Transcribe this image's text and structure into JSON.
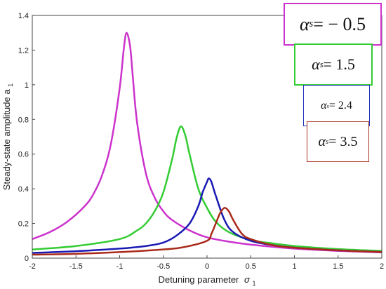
{
  "chart_data": {
    "type": "line",
    "xlabel": "Detuning parameter",
    "xlabel_symbol": "σ",
    "xlabel_subscript": "1",
    "ylabel": "Steady-state amplitude a",
    "ylabel_subscript": "1",
    "xlim": [
      -2,
      2
    ],
    "ylim": [
      0,
      1.4
    ],
    "x_ticks": [
      "-2",
      "-1.5",
      "-1",
      "-0.5",
      "0",
      "0.5",
      "1",
      "1.5",
      "2"
    ],
    "y_ticks": [
      "0",
      "0.2",
      "0.4",
      "0.6",
      "0.8",
      "1",
      "1.2",
      "1.4"
    ],
    "legend_position": "top-right",
    "series": [
      {
        "name": "α_s = −0.5",
        "label_symbol": "α",
        "label_sub": "s",
        "label_rest": " = − 0.5",
        "color": "#cc33cc",
        "points": [
          [
            -2.0,
            0.11
          ],
          [
            -1.8,
            0.15
          ],
          [
            -1.6,
            0.21
          ],
          [
            -1.4,
            0.3
          ],
          [
            -1.3,
            0.37
          ],
          [
            -1.2,
            0.48
          ],
          [
            -1.1,
            0.66
          ],
          [
            -1.0,
            0.98
          ],
          [
            -0.95,
            1.22
          ],
          [
            -0.92,
            1.3
          ],
          [
            -0.88,
            1.22
          ],
          [
            -0.85,
            1.05
          ],
          [
            -0.8,
            0.78
          ],
          [
            -0.7,
            0.49
          ],
          [
            -0.6,
            0.35
          ],
          [
            -0.5,
            0.27
          ],
          [
            -0.4,
            0.22
          ],
          [
            -0.2,
            0.16
          ],
          [
            0.0,
            0.12
          ],
          [
            0.25,
            0.095
          ],
          [
            0.5,
            0.078
          ],
          [
            1.0,
            0.055
          ],
          [
            1.5,
            0.042
          ],
          [
            2.0,
            0.033
          ]
        ]
      },
      {
        "name": "α_s = 1.5",
        "label_symbol": "α",
        "label_sub": "s",
        "label_rest": " = 1.5",
        "color": "#33cc33",
        "points": [
          [
            -2.0,
            0.05
          ],
          [
            -1.5,
            0.07
          ],
          [
            -1.0,
            0.11
          ],
          [
            -0.8,
            0.16
          ],
          [
            -0.7,
            0.2
          ],
          [
            -0.6,
            0.27
          ],
          [
            -0.5,
            0.38
          ],
          [
            -0.4,
            0.57
          ],
          [
            -0.35,
            0.69
          ],
          [
            -0.3,
            0.76
          ],
          [
            -0.25,
            0.71
          ],
          [
            -0.2,
            0.6
          ],
          [
            -0.1,
            0.4
          ],
          [
            0.0,
            0.29
          ],
          [
            0.1,
            0.21
          ],
          [
            0.25,
            0.15
          ],
          [
            0.5,
            0.105
          ],
          [
            0.75,
            0.085
          ],
          [
            1.0,
            0.07
          ],
          [
            1.5,
            0.052
          ],
          [
            2.0,
            0.042
          ]
        ]
      },
      {
        "name": "α_s = 2.4",
        "label_symbol": "α",
        "label_sub": "s",
        "label_rest": " = 2.4",
        "color": "#1a1ab3",
        "points": [
          [
            -2.0,
            0.03
          ],
          [
            -1.5,
            0.04
          ],
          [
            -1.0,
            0.055
          ],
          [
            -0.7,
            0.07
          ],
          [
            -0.5,
            0.09
          ],
          [
            -0.35,
            0.13
          ],
          [
            -0.2,
            0.2
          ],
          [
            -0.1,
            0.3
          ],
          [
            -0.05,
            0.38
          ],
          [
            0.0,
            0.44
          ],
          [
            0.02,
            0.46
          ],
          [
            0.05,
            0.44
          ],
          [
            0.1,
            0.36
          ],
          [
            0.2,
            0.22
          ],
          [
            0.3,
            0.15
          ],
          [
            0.5,
            0.1
          ],
          [
            0.75,
            0.075
          ],
          [
            1.0,
            0.06
          ],
          [
            1.5,
            0.045
          ],
          [
            2.0,
            0.035
          ]
        ]
      },
      {
        "name": "α_s = 3.5",
        "label_symbol": "α",
        "label_sub": "s",
        "label_rest": " = 3.5",
        "color": "#aa2a1a",
        "points": [
          [
            -2.0,
            0.02
          ],
          [
            -1.5,
            0.025
          ],
          [
            -1.0,
            0.035
          ],
          [
            -0.5,
            0.05
          ],
          [
            -0.25,
            0.065
          ],
          [
            0.0,
            0.1
          ],
          [
            0.05,
            0.14
          ],
          [
            0.1,
            0.2
          ],
          [
            0.15,
            0.26
          ],
          [
            0.2,
            0.29
          ],
          [
            0.25,
            0.27
          ],
          [
            0.3,
            0.22
          ],
          [
            0.4,
            0.14
          ],
          [
            0.5,
            0.11
          ],
          [
            0.75,
            0.075
          ],
          [
            1.0,
            0.06
          ],
          [
            1.5,
            0.045
          ],
          [
            2.0,
            0.035
          ]
        ]
      }
    ]
  }
}
